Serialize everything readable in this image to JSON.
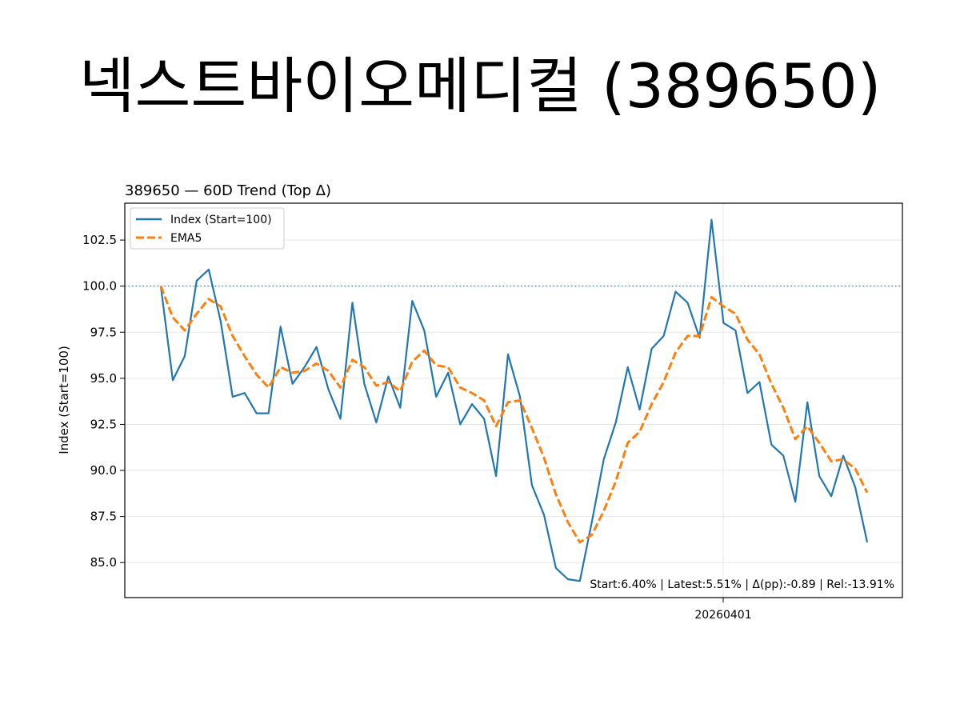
{
  "page": {
    "title": "넥스트바이오메디컬 (389650)"
  },
  "chart_data": {
    "type": "line",
    "title": "389650 — 60D Trend (Top Δ)",
    "xlabel": "",
    "ylabel": "Index (Start=100)",
    "x_tick_labels": [
      "20260401"
    ],
    "y_ticks": [
      85.0,
      87.5,
      90.0,
      92.5,
      95.0,
      97.5,
      100.0,
      102.5
    ],
    "ylim": [
      83.1,
      104.5
    ],
    "reference_line": 100.0,
    "grid": true,
    "legend_position": "top-left",
    "series": [
      {
        "name": "Index (Start=100)",
        "color": "#1f77b4",
        "style": "solid",
        "values": [
          100.0,
          94.9,
          96.2,
          100.3,
          100.9,
          98.1,
          94.0,
          94.2,
          93.1,
          93.1,
          97.8,
          94.7,
          95.6,
          96.7,
          94.4,
          92.8,
          99.1,
          94.7,
          92.6,
          95.1,
          93.4,
          99.2,
          97.6,
          94.0,
          95.3,
          92.5,
          93.6,
          92.8,
          89.7,
          96.3,
          94.0,
          89.2,
          87.6,
          84.7,
          84.1,
          84.0,
          87.2,
          90.6,
          92.6,
          95.6,
          93.3,
          96.6,
          97.3,
          99.7,
          99.1,
          97.2,
          103.6,
          98.0,
          97.6,
          94.2,
          94.8,
          91.4,
          90.8,
          88.3,
          93.7,
          89.7,
          88.6,
          90.8,
          89.1,
          86.1
        ]
      },
      {
        "name": "EMA5",
        "color": "#ff7f0e",
        "style": "dashed",
        "values": [
          100.0,
          98.3,
          97.6,
          98.5,
          99.3,
          98.9,
          97.3,
          96.2,
          95.2,
          94.5,
          95.6,
          95.3,
          95.4,
          95.8,
          95.4,
          94.5,
          96.0,
          95.6,
          94.6,
          94.8,
          94.3,
          95.9,
          96.5,
          95.7,
          95.6,
          94.5,
          94.2,
          93.8,
          92.4,
          93.7,
          93.8,
          92.3,
          90.7,
          88.7,
          87.2,
          86.1,
          86.5,
          87.8,
          89.4,
          91.5,
          92.1,
          93.6,
          94.8,
          96.4,
          97.3,
          97.3,
          99.4,
          98.9,
          98.5,
          97.1,
          96.3,
          94.7,
          93.4,
          91.7,
          92.4,
          91.5,
          90.5,
          90.6,
          90.1,
          88.8
        ]
      }
    ],
    "annotation": "Start:6.40% | Latest:5.51% | Δ(pp):-0.89 | Rel:-13.91%"
  }
}
